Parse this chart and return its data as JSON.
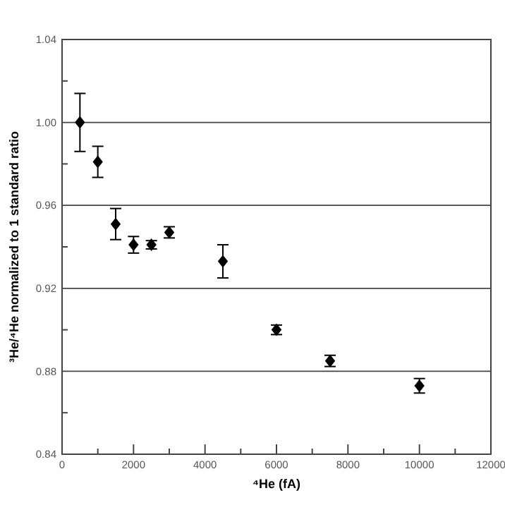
{
  "chart_data": {
    "type": "scatter",
    "xlabel": "⁴He (fA)",
    "ylabel": "³He/⁴He normalized to 1 standard ratio",
    "x": [
      500,
      1000,
      1500,
      2000,
      2500,
      3000,
      4500,
      6000,
      7500,
      10000
    ],
    "series": [
      {
        "color": "#000000",
        "values": [
          1.0,
          0.981,
          0.951,
          0.941,
          0.941,
          0.947,
          0.933,
          0.9,
          0.885,
          0.873
        ],
        "errors": [
          0.014,
          0.0075,
          0.0075,
          0.004,
          0.002,
          0.0027,
          0.008,
          0.0023,
          0.0027,
          0.0035
        ]
      }
    ],
    "marker": "diamond",
    "grid": "y",
    "xlim": [
      0,
      12000
    ],
    "xticks": [
      0,
      {
        "value": 1000,
        "label": null
      },
      2000,
      {
        "value": 3000,
        "label": null
      },
      4000,
      {
        "value": 5000,
        "label": null
      },
      6000,
      {
        "value": 7000,
        "label": null
      },
      8000,
      {
        "value": 9000,
        "label": null
      },
      10000,
      {
        "value": 11000,
        "label": null
      },
      12000
    ],
    "ylim": [
      0.84,
      1.04
    ],
    "yticks": [
      {
        "value": 0.84,
        "label": "0.84"
      },
      {
        "value": 0.86,
        "label": null
      },
      {
        "value": 0.88,
        "label": "0.88"
      },
      {
        "value": 0.9,
        "label": null
      },
      {
        "value": 0.92,
        "label": "0.92"
      },
      {
        "value": 0.94,
        "label": null
      },
      {
        "value": 0.96,
        "label": "0.96"
      },
      {
        "value": 0.98,
        "label": null
      },
      {
        "value": 1.0,
        "label": "1.00"
      },
      {
        "value": 1.02,
        "label": null
      },
      {
        "value": 1.04,
        "label": "1.04"
      }
    ]
  }
}
